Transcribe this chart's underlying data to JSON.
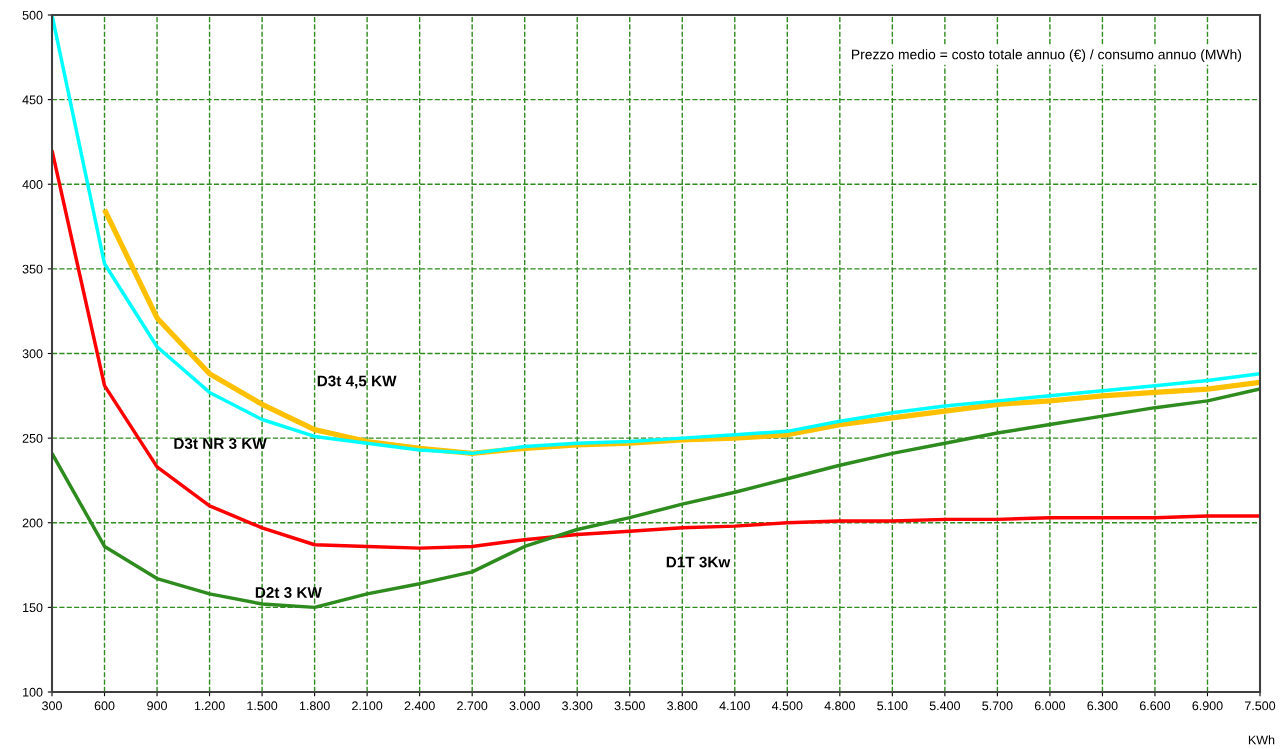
{
  "chart_data": {
    "type": "line",
    "xlabel": "KWh",
    "categories": [
      "300",
      "600",
      "900",
      "1.200",
      "1.500",
      "1.800",
      "2.100",
      "2.400",
      "2.700",
      "3.000",
      "3.300",
      "3.500",
      "3.800",
      "4.100",
      "4.500",
      "4.800",
      "5.100",
      "5.400",
      "5.700",
      "6.000",
      "6.300",
      "6.600",
      "6.900",
      "7.500"
    ],
    "series": [
      {
        "name": "D3t 4,5 KW",
        "color": "#ffc000",
        "values": [
          null,
          385,
          321,
          288,
          270,
          255,
          248,
          244,
          241,
          244,
          246,
          247,
          249,
          250,
          252,
          258,
          262,
          266,
          270,
          272,
          275,
          277,
          279,
          283
        ]
      },
      {
        "name": "D3t NR 3 KW",
        "color": "#00ffff",
        "values": [
          500,
          353,
          304,
          277,
          261,
          251,
          247,
          243,
          241,
          245,
          247,
          248,
          250,
          252,
          254,
          260,
          265,
          269,
          272,
          275,
          278,
          281,
          284,
          288
        ]
      },
      {
        "name": "D1T 3Kw",
        "color": "#ff0000",
        "values": [
          420,
          281,
          233,
          210,
          197,
          187,
          186,
          185,
          186,
          190,
          193,
          195,
          197,
          198,
          200,
          201,
          201,
          202,
          202,
          203,
          203,
          203,
          204,
          204
        ]
      },
      {
        "name": "D2t 3 KW",
        "color": "#2e8b1e",
        "values": [
          241,
          186,
          167,
          158,
          152,
          150,
          158,
          164,
          171,
          186,
          196,
          203,
          211,
          218,
          226,
          234,
          241,
          247,
          253,
          258,
          263,
          268,
          272,
          279
        ]
      }
    ],
    "ylim": [
      100,
      500
    ],
    "yticks": [
      100,
      150,
      200,
      250,
      300,
      350,
      400,
      450,
      500
    ],
    "grid": true,
    "legend": false,
    "marker": "none",
    "line_style": "solid",
    "annotations": [
      "Prezzo medio = costo totale annuo (€) / consumo annuo (MWh)"
    ]
  }
}
